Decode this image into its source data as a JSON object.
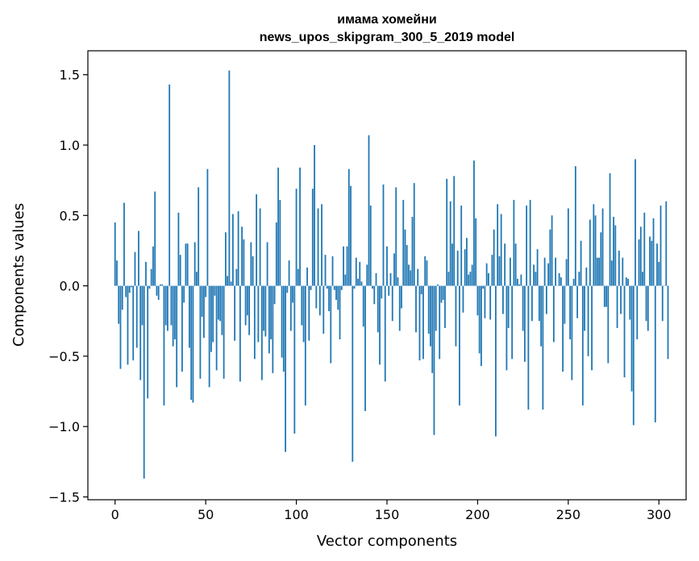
{
  "chart_data": {
    "type": "bar",
    "title": "имама хомейни",
    "subtitle": "news_upos_skipgram_300_5_2019 model",
    "xlabel": "Vector components",
    "ylabel": "Components values",
    "xlim": [
      -15,
      315
    ],
    "ylim": [
      -1.52,
      1.67
    ],
    "xticks": [
      0,
      50,
      100,
      150,
      200,
      250,
      300
    ],
    "xtick_labels": [
      "0",
      "50",
      "100",
      "150",
      "200",
      "250",
      "300"
    ],
    "yticks": [
      -1.5,
      -1.0,
      -0.5,
      0.0,
      0.5,
      1.0,
      1.5
    ],
    "ytick_labels": [
      "−1.5",
      "−1.0",
      "−0.5",
      "0.0",
      "0.5",
      "1.0",
      "1.5"
    ],
    "grid": false,
    "bar_color": "#1f77b4",
    "values": [
      0.45,
      0.18,
      -0.27,
      -0.59,
      -0.17,
      0.59,
      -0.08,
      -0.56,
      -0.05,
      -0.01,
      -0.53,
      0.24,
      -0.44,
      0.39,
      -0.67,
      -0.28,
      -1.37,
      0.17,
      -0.8,
      -0.02,
      0.12,
      0.28,
      0.67,
      -0.07,
      -0.1,
      0.01,
      0.01,
      -0.85,
      -0.28,
      -0.32,
      1.43,
      -0.28,
      -0.43,
      -0.38,
      -0.72,
      0.52,
      0.22,
      -0.61,
      -0.12,
      0.3,
      0.3,
      -0.44,
      -0.81,
      -0.83,
      0.31,
      0.1,
      0.7,
      -0.66,
      -0.22,
      -0.37,
      -0.08,
      0.83,
      -0.72,
      -0.47,
      -0.4,
      -0.07,
      -0.6,
      -0.24,
      -0.25,
      -0.35,
      -0.66,
      0.38,
      0.07,
      1.53,
      0.03,
      0.51,
      -0.39,
      0.12,
      0.53,
      -0.68,
      0.42,
      0.33,
      -0.28,
      -0.21,
      -0.35,
      0.31,
      0.21,
      -0.52,
      0.65,
      -0.4,
      0.55,
      -0.67,
      -0.32,
      -0.36,
      0.31,
      -0.48,
      -0.38,
      -0.62,
      -0.13,
      0.45,
      0.84,
      0.61,
      -0.51,
      -0.61,
      -1.18,
      -0.05,
      0.18,
      -0.32,
      -0.12,
      -1.05,
      0.69,
      0.12,
      0.84,
      -0.28,
      -0.4,
      -0.85,
      0.13,
      -0.39,
      -0.03,
      0.69,
      1.0,
      -0.16,
      0.55,
      -0.21,
      0.58,
      -0.34,
      0.22,
      -0.02,
      -0.18,
      -0.55,
      0.21,
      -0.03,
      -0.1,
      -0.17,
      -0.38,
      -0.03,
      0.28,
      0.08,
      0.28,
      0.83,
      0.71,
      -1.25,
      -0.02,
      0.2,
      0.05,
      0.17,
      0.03,
      -0.29,
      -0.89,
      0.15,
      1.07,
      0.57,
      -0.02,
      -0.13,
      0.09,
      -0.33,
      -0.56,
      -0.09,
      0.72,
      -0.68,
      0.28,
      -0.07,
      0.09,
      -0.25,
      0.23,
      0.7,
      0.06,
      -0.32,
      -0.16,
      0.61,
      0.4,
      0.29,
      0.15,
      0.11,
      0.49,
      0.73,
      -0.33,
      0.12,
      -0.53,
      -0.06,
      -0.52,
      0.21,
      0.18,
      -0.34,
      -0.43,
      -0.62,
      -1.06,
      -0.32,
      0.01,
      -0.52,
      -0.12,
      -0.1,
      -0.3,
      0.76,
      0.1,
      0.6,
      0.3,
      0.78,
      -0.43,
      0.25,
      -0.85,
      0.57,
      -0.19,
      0.26,
      0.34,
      0.08,
      0.1,
      0.15,
      0.89,
      0.48,
      -0.21,
      -0.48,
      -0.57,
      -0.02,
      -0.23,
      0.16,
      0.09,
      -0.24,
      0.22,
      0.4,
      -1.07,
      0.58,
      0.21,
      0.51,
      -0.2,
      0.3,
      -0.6,
      -0.3,
      0.2,
      -0.52,
      0.61,
      0.3,
      0.05,
      0.01,
      0.08,
      -0.32,
      -0.54,
      0.57,
      -0.88,
      0.61,
      -0.25,
      0.15,
      0.1,
      0.26,
      -0.25,
      -0.43,
      -0.88,
      0.2,
      -0.2,
      0.16,
      0.4,
      0.5,
      -0.4,
      0.2,
      0.0,
      0.09,
      0.06,
      -0.61,
      -0.27,
      0.19,
      0.55,
      -0.38,
      -0.67,
      0.05,
      0.85,
      -0.23,
      0.1,
      0.32,
      -0.85,
      -0.32,
      0.13,
      -0.5,
      0.47,
      -0.6,
      0.58,
      0.5,
      0.2,
      0.2,
      0.38,
      0.55,
      -0.15,
      -0.15,
      -0.55,
      0.8,
      0.18,
      0.49,
      0.43,
      -0.3,
      0.25,
      -0.2,
      0.2,
      -0.65,
      0.06,
      0.05,
      -0.24,
      -0.75,
      -0.99,
      0.9,
      -0.38,
      0.33,
      0.42,
      0.1,
      0.52,
      -0.25,
      -0.32,
      0.35,
      0.32,
      0.48,
      -0.97,
      0.3,
      0.17,
      0.57,
      -0.25,
      0.0,
      0.6,
      -0.52
    ]
  }
}
